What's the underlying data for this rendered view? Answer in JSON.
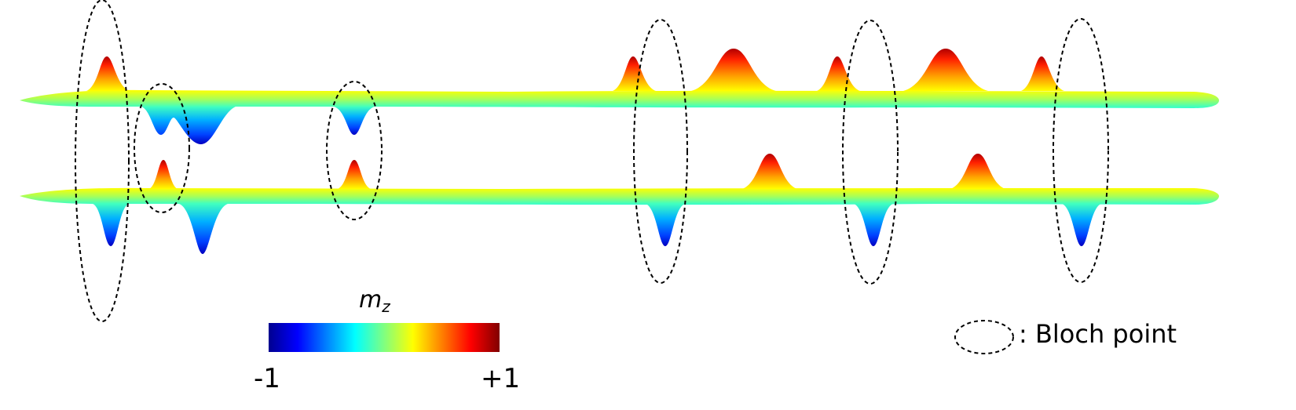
{
  "colorbar": {
    "quantity_symbol": "m",
    "quantity_subscript": "z",
    "min_label": "-1",
    "max_label": "+1",
    "colors": [
      "#00008f",
      "#0000ff",
      "#0080ff",
      "#00ffff",
      "#80ff80",
      "#ffff00",
      "#ff8000",
      "#ff0000",
      "#800000"
    ]
  },
  "legend": {
    "symbol": "dashed-ellipse",
    "label": ": Bloch point"
  },
  "colors": {
    "outline": "#000000",
    "baseline_gradient": [
      "#ffff00",
      "#a8ff58",
      "#40ffc0"
    ]
  }
}
